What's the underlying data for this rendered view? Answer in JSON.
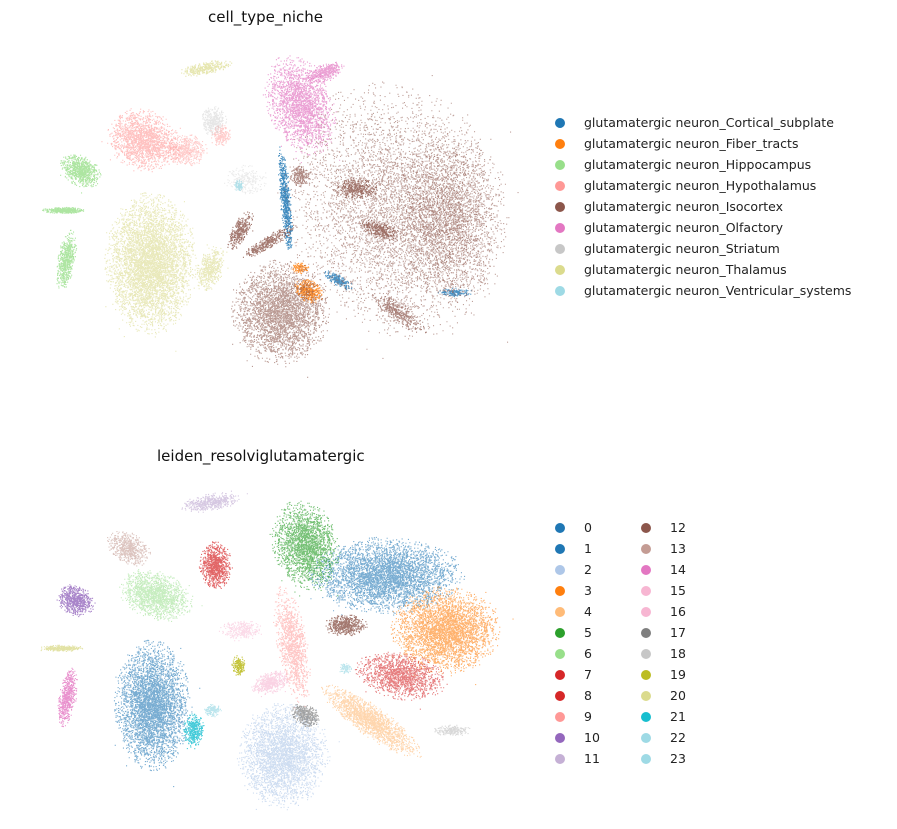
{
  "chart_data": [
    {
      "type": "scatter",
      "title": "cell_type_niche",
      "legend_position": "right",
      "grid": false,
      "axes_visible": false,
      "categories": [
        {
          "name": "glutamatergic neuron_Cortical_subplate",
          "color": "#1f77b4"
        },
        {
          "name": "glutamatergic neuron_Fiber_tracts",
          "color": "#ff7f0e"
        },
        {
          "name": "glutamatergic neuron_Hippocampus",
          "color": "#98df8a"
        },
        {
          "name": "glutamatergic neuron_Hypothalamus",
          "color": "#ff9896"
        },
        {
          "name": "glutamatergic neuron_Isocortex",
          "color": "#8c564b"
        },
        {
          "name": "glutamatergic neuron_Olfactory",
          "color": "#e377c2"
        },
        {
          "name": "glutamatergic neuron_Striatum",
          "color": "#c7c7c7"
        },
        {
          "name": "glutamatergic neuron_Thalamus",
          "color": "#dbdb8d"
        },
        {
          "name": "glutamatergic neuron_Ventricular_systems",
          "color": "#9edae5"
        }
      ]
    },
    {
      "type": "scatter",
      "title": "leiden_resolviglutamatergic",
      "legend_position": "right",
      "legend_columns": 2,
      "grid": false,
      "axes_visible": false,
      "categories": [
        {
          "name": "0",
          "color": "#1f77b4"
        },
        {
          "name": "1",
          "color": "#1f77b4"
        },
        {
          "name": "2",
          "color": "#aec7e8"
        },
        {
          "name": "3",
          "color": "#ff7f0e"
        },
        {
          "name": "4",
          "color": "#ffbb78"
        },
        {
          "name": "5",
          "color": "#2ca02c"
        },
        {
          "name": "6",
          "color": "#98df8a"
        },
        {
          "name": "7",
          "color": "#d62728"
        },
        {
          "name": "8",
          "color": "#d62728"
        },
        {
          "name": "9",
          "color": "#ff9896"
        },
        {
          "name": "10",
          "color": "#9467bd"
        },
        {
          "name": "11",
          "color": "#c5b0d5"
        },
        {
          "name": "12",
          "color": "#8c564b"
        },
        {
          "name": "13",
          "color": "#c49c94"
        },
        {
          "name": "14",
          "color": "#e377c2"
        },
        {
          "name": "15",
          "color": "#f7b6d2"
        },
        {
          "name": "16",
          "color": "#f7b6d2"
        },
        {
          "name": "17",
          "color": "#7f7f7f"
        },
        {
          "name": "18",
          "color": "#c7c7c7"
        },
        {
          "name": "19",
          "color": "#bcbd22"
        },
        {
          "name": "20",
          "color": "#dbdb8d"
        },
        {
          "name": "21",
          "color": "#17becf"
        },
        {
          "name": "22",
          "color": "#9edae5"
        },
        {
          "name": "23",
          "color": "#9edae5"
        }
      ]
    }
  ]
}
